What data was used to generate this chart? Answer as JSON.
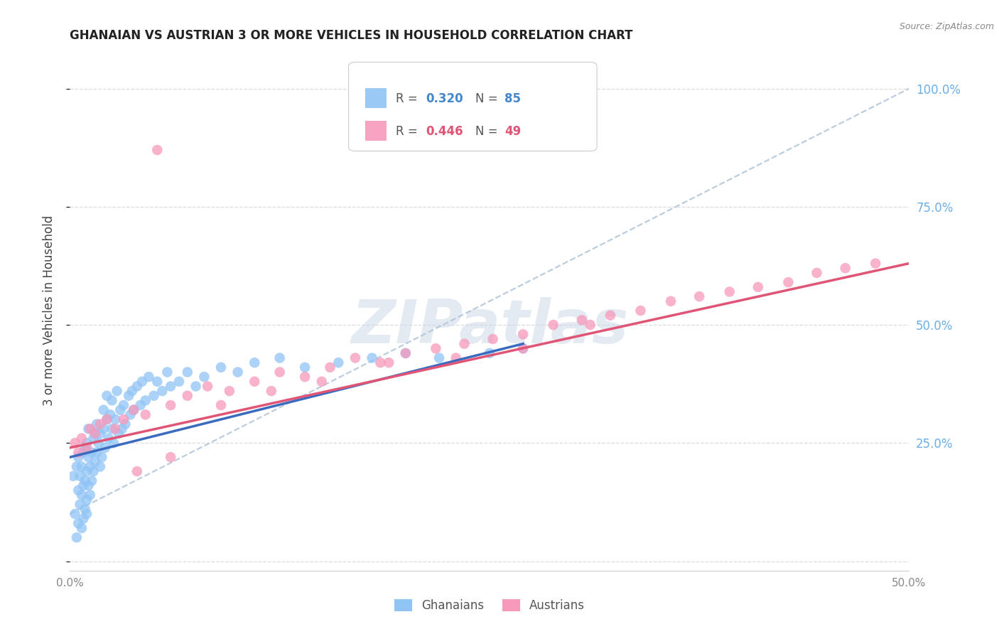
{
  "title": "GHANAIAN VS AUSTRIAN 3 OR MORE VEHICLES IN HOUSEHOLD CORRELATION CHART",
  "source": "Source: ZipAtlas.com",
  "ylabel": "3 or more Vehicles in Household",
  "watermark_text": "ZIPatlas",
  "xlim": [
    0.0,
    0.5
  ],
  "ylim": [
    -0.02,
    1.08
  ],
  "x_ticks": [
    0.0,
    0.1,
    0.2,
    0.3,
    0.4,
    0.5
  ],
  "x_tick_labels": [
    "0.0%",
    "",
    "",
    "",
    "",
    "50.0%"
  ],
  "y_ticks": [
    0.0,
    0.25,
    0.5,
    0.75,
    1.0
  ],
  "y_tick_labels_right": [
    "",
    "25.0%",
    "50.0%",
    "75.0%",
    "100.0%"
  ],
  "ghanaian_R": "0.320",
  "ghanaian_N": "85",
  "austrian_R": "0.446",
  "austrian_N": "49",
  "ghanaian_color": "#90c4f5",
  "austrian_color": "#f799bb",
  "ghanaian_line_color": "#3a6bbf",
  "austrian_line_color": "#e05575",
  "dashed_line_color": "#b0c4d8",
  "background_color": "#ffffff",
  "grid_color": "#d8d8d8",
  "right_axis_color": "#6baee8",
  "legend_box_color": "#cccccc",
  "title_color": "#222222",
  "source_color": "#888888",
  "ylabel_color": "#444444",
  "tick_color": "#888888",
  "legend_label_color": "#555555",
  "legend_R_blue": "#4488cc",
  "legend_N_blue": "#4488cc",
  "legend_R_pink": "#e05575",
  "legend_N_pink": "#e05575",
  "watermark_color": "#ccd9e8",
  "ghanaian_scatter_x": [
    0.002,
    0.003,
    0.004,
    0.004,
    0.005,
    0.005,
    0.005,
    0.006,
    0.006,
    0.007,
    0.007,
    0.007,
    0.008,
    0.008,
    0.008,
    0.009,
    0.009,
    0.009,
    0.01,
    0.01,
    0.01,
    0.01,
    0.011,
    0.011,
    0.011,
    0.012,
    0.012,
    0.013,
    0.013,
    0.014,
    0.014,
    0.015,
    0.015,
    0.016,
    0.016,
    0.017,
    0.018,
    0.018,
    0.019,
    0.02,
    0.02,
    0.021,
    0.022,
    0.022,
    0.023,
    0.024,
    0.025,
    0.025,
    0.026,
    0.027,
    0.028,
    0.029,
    0.03,
    0.031,
    0.032,
    0.033,
    0.035,
    0.036,
    0.037,
    0.038,
    0.04,
    0.042,
    0.043,
    0.045,
    0.047,
    0.05,
    0.052,
    0.055,
    0.058,
    0.06,
    0.065,
    0.07,
    0.075,
    0.08,
    0.09,
    0.1,
    0.11,
    0.125,
    0.14,
    0.16,
    0.18,
    0.2,
    0.22,
    0.25,
    0.27
  ],
  "ghanaian_scatter_y": [
    0.18,
    0.1,
    0.05,
    0.2,
    0.08,
    0.15,
    0.22,
    0.12,
    0.18,
    0.07,
    0.14,
    0.2,
    0.09,
    0.16,
    0.23,
    0.11,
    0.17,
    0.24,
    0.13,
    0.19,
    0.25,
    0.1,
    0.16,
    0.22,
    0.28,
    0.14,
    0.2,
    0.17,
    0.23,
    0.19,
    0.26,
    0.21,
    0.27,
    0.23,
    0.29,
    0.25,
    0.2,
    0.27,
    0.22,
    0.28,
    0.32,
    0.24,
    0.3,
    0.35,
    0.26,
    0.31,
    0.28,
    0.34,
    0.25,
    0.3,
    0.36,
    0.27,
    0.32,
    0.28,
    0.33,
    0.29,
    0.35,
    0.31,
    0.36,
    0.32,
    0.37,
    0.33,
    0.38,
    0.34,
    0.39,
    0.35,
    0.38,
    0.36,
    0.4,
    0.37,
    0.38,
    0.4,
    0.37,
    0.39,
    0.41,
    0.4,
    0.42,
    0.43,
    0.41,
    0.42,
    0.43,
    0.44,
    0.43,
    0.44,
    0.45
  ],
  "austrian_scatter_x": [
    0.003,
    0.005,
    0.007,
    0.01,
    0.012,
    0.015,
    0.018,
    0.022,
    0.027,
    0.032,
    0.038,
    0.045,
    0.052,
    0.06,
    0.07,
    0.082,
    0.095,
    0.11,
    0.125,
    0.14,
    0.155,
    0.17,
    0.185,
    0.2,
    0.218,
    0.235,
    0.252,
    0.27,
    0.288,
    0.305,
    0.322,
    0.34,
    0.358,
    0.375,
    0.393,
    0.41,
    0.428,
    0.445,
    0.462,
    0.48,
    0.31,
    0.27,
    0.23,
    0.19,
    0.15,
    0.12,
    0.09,
    0.06,
    0.04
  ],
  "austrian_scatter_y": [
    0.25,
    0.23,
    0.26,
    0.24,
    0.28,
    0.27,
    0.29,
    0.3,
    0.28,
    0.3,
    0.32,
    0.31,
    0.87,
    0.33,
    0.35,
    0.37,
    0.36,
    0.38,
    0.4,
    0.39,
    0.41,
    0.43,
    0.42,
    0.44,
    0.45,
    0.46,
    0.47,
    0.48,
    0.5,
    0.51,
    0.52,
    0.53,
    0.55,
    0.56,
    0.57,
    0.58,
    0.59,
    0.61,
    0.62,
    0.63,
    0.5,
    0.45,
    0.43,
    0.42,
    0.38,
    0.36,
    0.33,
    0.22,
    0.19
  ],
  "ghanaian_trend_x": [
    0.0,
    0.27
  ],
  "ghanaian_trend_y": [
    0.22,
    0.46
  ],
  "austrian_trend_x": [
    0.0,
    0.5
  ],
  "austrian_trend_y": [
    0.24,
    0.63
  ],
  "dashed_trend_x": [
    0.0,
    0.5
  ],
  "dashed_trend_y": [
    0.1,
    1.0
  ]
}
